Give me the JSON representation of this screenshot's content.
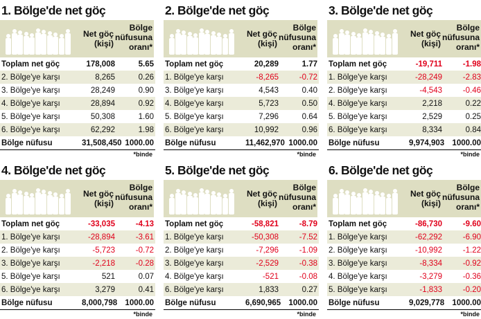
{
  "colors": {
    "header_bg": "#dedec2",
    "stripe": "#ebebd9",
    "negative": "#e0001b",
    "crowd": "#ffffff"
  },
  "header": {
    "col_migration_1": "Net göç",
    "col_migration_2": "(kişi)",
    "col_ratio_1": "Bölge",
    "col_ratio_2": "nüfusuna",
    "col_ratio_3": "oranı*"
  },
  "footnote": "*binde",
  "chart_data": [
    {
      "type": "table",
      "title": "1. Bölge'de net göç",
      "rows": [
        {
          "label": "Toplam net göç",
          "migration": "178,008",
          "ratio": "5.65",
          "migration_value": 178008,
          "ratio_value": 5.65
        },
        {
          "label": "2. Bölge'ye karşı",
          "migration": "8,265",
          "ratio": "0.26",
          "migration_value": 8265,
          "ratio_value": 0.26
        },
        {
          "label": "3. Bölge'ye karşı",
          "migration": "28,249",
          "ratio": "0.90",
          "migration_value": 28249,
          "ratio_value": 0.9
        },
        {
          "label": "4. Bölge'ye karşı",
          "migration": "28,894",
          "ratio": "0.92",
          "migration_value": 28894,
          "ratio_value": 0.92
        },
        {
          "label": "5. Bölge'ye karşı",
          "migration": "50,308",
          "ratio": "1.60",
          "migration_value": 50308,
          "ratio_value": 1.6
        },
        {
          "label": "6. Bölge'ye karşı",
          "migration": "62,292",
          "ratio": "1.98",
          "migration_value": 62292,
          "ratio_value": 1.98
        },
        {
          "label": "Bölge nüfusu",
          "migration": "31,508,450",
          "ratio": "1000.00",
          "migration_value": 31508450,
          "ratio_value": 1000.0
        }
      ]
    },
    {
      "type": "table",
      "title": "2. Bölge'de net göç",
      "rows": [
        {
          "label": "Toplam net göç",
          "migration": "20,289",
          "ratio": "1.77",
          "migration_value": 20289,
          "ratio_value": 1.77
        },
        {
          "label": "1. Bölge'ye karşı",
          "migration": "-8,265",
          "ratio": "-0.72",
          "migration_value": -8265,
          "ratio_value": -0.72
        },
        {
          "label": "3. Bölge'ye karşı",
          "migration": "4,543",
          "ratio": "0.40",
          "migration_value": 4543,
          "ratio_value": 0.4
        },
        {
          "label": "4. Bölge'ye karşı",
          "migration": "5,723",
          "ratio": "0.50",
          "migration_value": 5723,
          "ratio_value": 0.5
        },
        {
          "label": "5. Bölge'ye karşı",
          "migration": "7,296",
          "ratio": "0.64",
          "migration_value": 7296,
          "ratio_value": 0.64
        },
        {
          "label": "6. Bölge'ye karşı",
          "migration": "10,992",
          "ratio": "0.96",
          "migration_value": 10992,
          "ratio_value": 0.96
        },
        {
          "label": "Bölge nüfusu",
          "migration": "11,462,970",
          "ratio": "1000.00",
          "migration_value": 11462970,
          "ratio_value": 1000.0
        }
      ]
    },
    {
      "type": "table",
      "title": "3. Bölge'de net göç",
      "rows": [
        {
          "label": "Toplam net göç",
          "migration": "-19,711",
          "ratio": "-1.98",
          "migration_value": -19711,
          "ratio_value": -1.98
        },
        {
          "label": "1. Bölge'ye karşı",
          "migration": "-28,249",
          "ratio": "-2.83",
          "migration_value": -28249,
          "ratio_value": -2.83
        },
        {
          "label": "2. Bölge'ye karşı",
          "migration": "-4,543",
          "ratio": "-0.46",
          "migration_value": -4543,
          "ratio_value": -0.46
        },
        {
          "label": "4. Bölge'ye karşı",
          "migration": "2,218",
          "ratio": "0.22",
          "migration_value": 2218,
          "ratio_value": 0.22
        },
        {
          "label": "5. Bölge'ye karşı",
          "migration": "2,529",
          "ratio": "0.25",
          "migration_value": 2529,
          "ratio_value": 0.25
        },
        {
          "label": "6. Bölge'ye karşı",
          "migration": "8,334",
          "ratio": "0.84",
          "migration_value": 8334,
          "ratio_value": 0.84
        },
        {
          "label": "Bölge nüfusu",
          "migration": "9,974,903",
          "ratio": "1000.00",
          "migration_value": 9974903,
          "ratio_value": 1000.0
        }
      ]
    },
    {
      "type": "table",
      "title": "4. Bölge'de net göç",
      "rows": [
        {
          "label": "Toplam net göç",
          "migration": "-33,035",
          "ratio": "-4.13",
          "migration_value": -33035,
          "ratio_value": -4.13
        },
        {
          "label": "1. Bölge'ye karşı",
          "migration": "-28,894",
          "ratio": "-3.61",
          "migration_value": -28894,
          "ratio_value": -3.61
        },
        {
          "label": "2. Bölge'ye karşı",
          "migration": "-5,723",
          "ratio": "-0.72",
          "migration_value": -5723,
          "ratio_value": -0.72
        },
        {
          "label": "3. Bölge'ye karşı",
          "migration": "-2,218",
          "ratio": "-0.28",
          "migration_value": -2218,
          "ratio_value": -0.28
        },
        {
          "label": "5. Bölge'ye karşı",
          "migration": "521",
          "ratio": "0.07",
          "migration_value": 521,
          "ratio_value": 0.07
        },
        {
          "label": "6. Bölge'ye karşı",
          "migration": "3,279",
          "ratio": "0.41",
          "migration_value": 3279,
          "ratio_value": 0.41
        },
        {
          "label": "Bölge nüfusu",
          "migration": "8,000,798",
          "ratio": "1000.00",
          "migration_value": 8000798,
          "ratio_value": 1000.0
        }
      ]
    },
    {
      "type": "table",
      "title": "5. Bölge'de net göç",
      "rows": [
        {
          "label": "Toplam net göç",
          "migration": "-58,821",
          "ratio": "-8.79",
          "migration_value": -58821,
          "ratio_value": -8.79
        },
        {
          "label": "1. Bölge'ye karşı",
          "migration": "-50,308",
          "ratio": "-7.52",
          "migration_value": -50308,
          "ratio_value": -7.52
        },
        {
          "label": "2. Bölge'ye karşı",
          "migration": "-7,296",
          "ratio": "-1.09",
          "migration_value": -7296,
          "ratio_value": -1.09
        },
        {
          "label": "3. Bölge'ye karşı",
          "migration": "-2,529",
          "ratio": "-0.38",
          "migration_value": -2529,
          "ratio_value": -0.38
        },
        {
          "label": "4. Bölge'ye karşı",
          "migration": "-521",
          "ratio": "-0.08",
          "migration_value": -521,
          "ratio_value": -0.08
        },
        {
          "label": "6. Bölge'ye karşı",
          "migration": "1,833",
          "ratio": "0.27",
          "migration_value": 1833,
          "ratio_value": 0.27
        },
        {
          "label": "Bölge nüfusu",
          "migration": "6,690,965",
          "ratio": "1000.00",
          "migration_value": 6690965,
          "ratio_value": 1000.0
        }
      ]
    },
    {
      "type": "table",
      "title": "6. Bölge'de net göç",
      "rows": [
        {
          "label": "Toplam net göç",
          "migration": "-86,730",
          "ratio": "-9.60",
          "migration_value": -86730,
          "ratio_value": -9.6
        },
        {
          "label": "1. Bölge'ye karşı",
          "migration": "-62,292",
          "ratio": "-6.90",
          "migration_value": -62292,
          "ratio_value": -6.9
        },
        {
          "label": "2. Bölge'ye karşı",
          "migration": "-10,992",
          "ratio": "-1.22",
          "migration_value": -10992,
          "ratio_value": -1.22
        },
        {
          "label": "3. Bölge'ye karşı",
          "migration": "-8,334",
          "ratio": "-0.92",
          "migration_value": -8334,
          "ratio_value": -0.92
        },
        {
          "label": "4. Bölge'ye karşı",
          "migration": "-3,279",
          "ratio": "-0.36",
          "migration_value": -3279,
          "ratio_value": -0.36
        },
        {
          "label": "5. Bölge'ye karşı",
          "migration": "-1,833",
          "ratio": "-0.20",
          "migration_value": -1833,
          "ratio_value": -0.2
        },
        {
          "label": "Bölge nüfusu",
          "migration": "9,029,778",
          "ratio": "1000.00",
          "migration_value": 9029778,
          "ratio_value": 1000.0
        }
      ]
    }
  ]
}
